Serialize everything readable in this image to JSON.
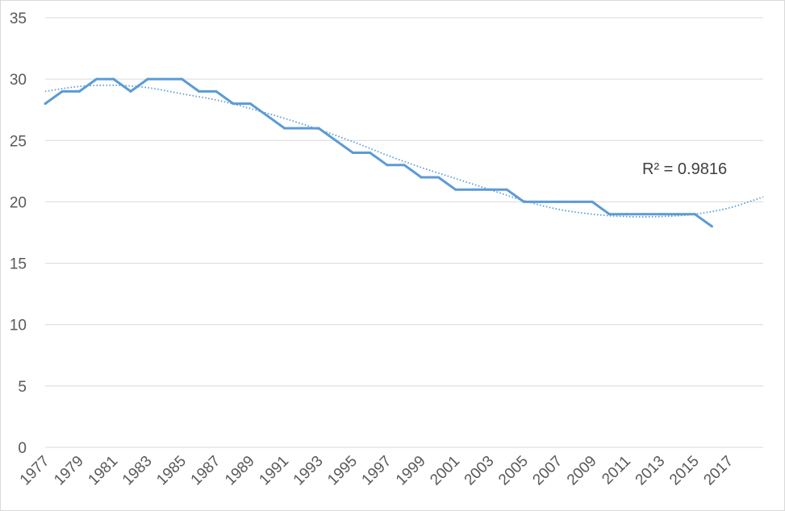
{
  "chart_data": {
    "type": "line",
    "title": "",
    "xlabel": "",
    "ylabel": "",
    "x": [
      1977,
      1978,
      1979,
      1980,
      1981,
      1982,
      1983,
      1984,
      1985,
      1986,
      1987,
      1988,
      1989,
      1990,
      1991,
      1992,
      1993,
      1994,
      1995,
      1996,
      1997,
      1998,
      1999,
      2000,
      2001,
      2002,
      2003,
      2004,
      2005,
      2006,
      2007,
      2008,
      2009,
      2010,
      2011,
      2012,
      2013,
      2014,
      2015,
      2016
    ],
    "series": [
      {
        "values": [
          28,
          29,
          29,
          30,
          30,
          29,
          30,
          30,
          30,
          29,
          29,
          28,
          28,
          27,
          26,
          26,
          26,
          25,
          24,
          24,
          23,
          23,
          22,
          22,
          21,
          21,
          21,
          21,
          20,
          20,
          20,
          20,
          20,
          19,
          19,
          19,
          19,
          19,
          19,
          18
        ],
        "color": "#5b9bd5"
      }
    ],
    "trendline": {
      "type": "polynomial",
      "x": [
        1977,
        1979,
        1981,
        1983,
        1985,
        1987,
        1989,
        1991,
        1993,
        1995,
        1997,
        1999,
        2001,
        2003,
        2005,
        2007,
        2009,
        2011,
        2013,
        2015,
        2017,
        2019
      ],
      "values": [
        29.0,
        29.4,
        29.5,
        29.3,
        28.8,
        28.3,
        27.6,
        26.8,
        25.9,
        24.9,
        23.8,
        22.8,
        21.9,
        21.0,
        20.1,
        19.4,
        19.0,
        18.8,
        18.8,
        19.0,
        19.5,
        20.4
      ],
      "color": "#5b9bd5",
      "r_squared_label": "R² = 0.9816"
    },
    "x_ticks": [
      1977,
      1979,
      1981,
      1983,
      1985,
      1987,
      1989,
      1991,
      1993,
      1995,
      1997,
      1999,
      2001,
      2003,
      2005,
      2007,
      2009,
      2011,
      2013,
      2015,
      2017
    ],
    "y_ticks": [
      0,
      5,
      10,
      15,
      20,
      25,
      30,
      35
    ],
    "xlim": [
      1977,
      2019
    ],
    "ylim": [
      0,
      35
    ],
    "grid": true,
    "legend": "none"
  }
}
